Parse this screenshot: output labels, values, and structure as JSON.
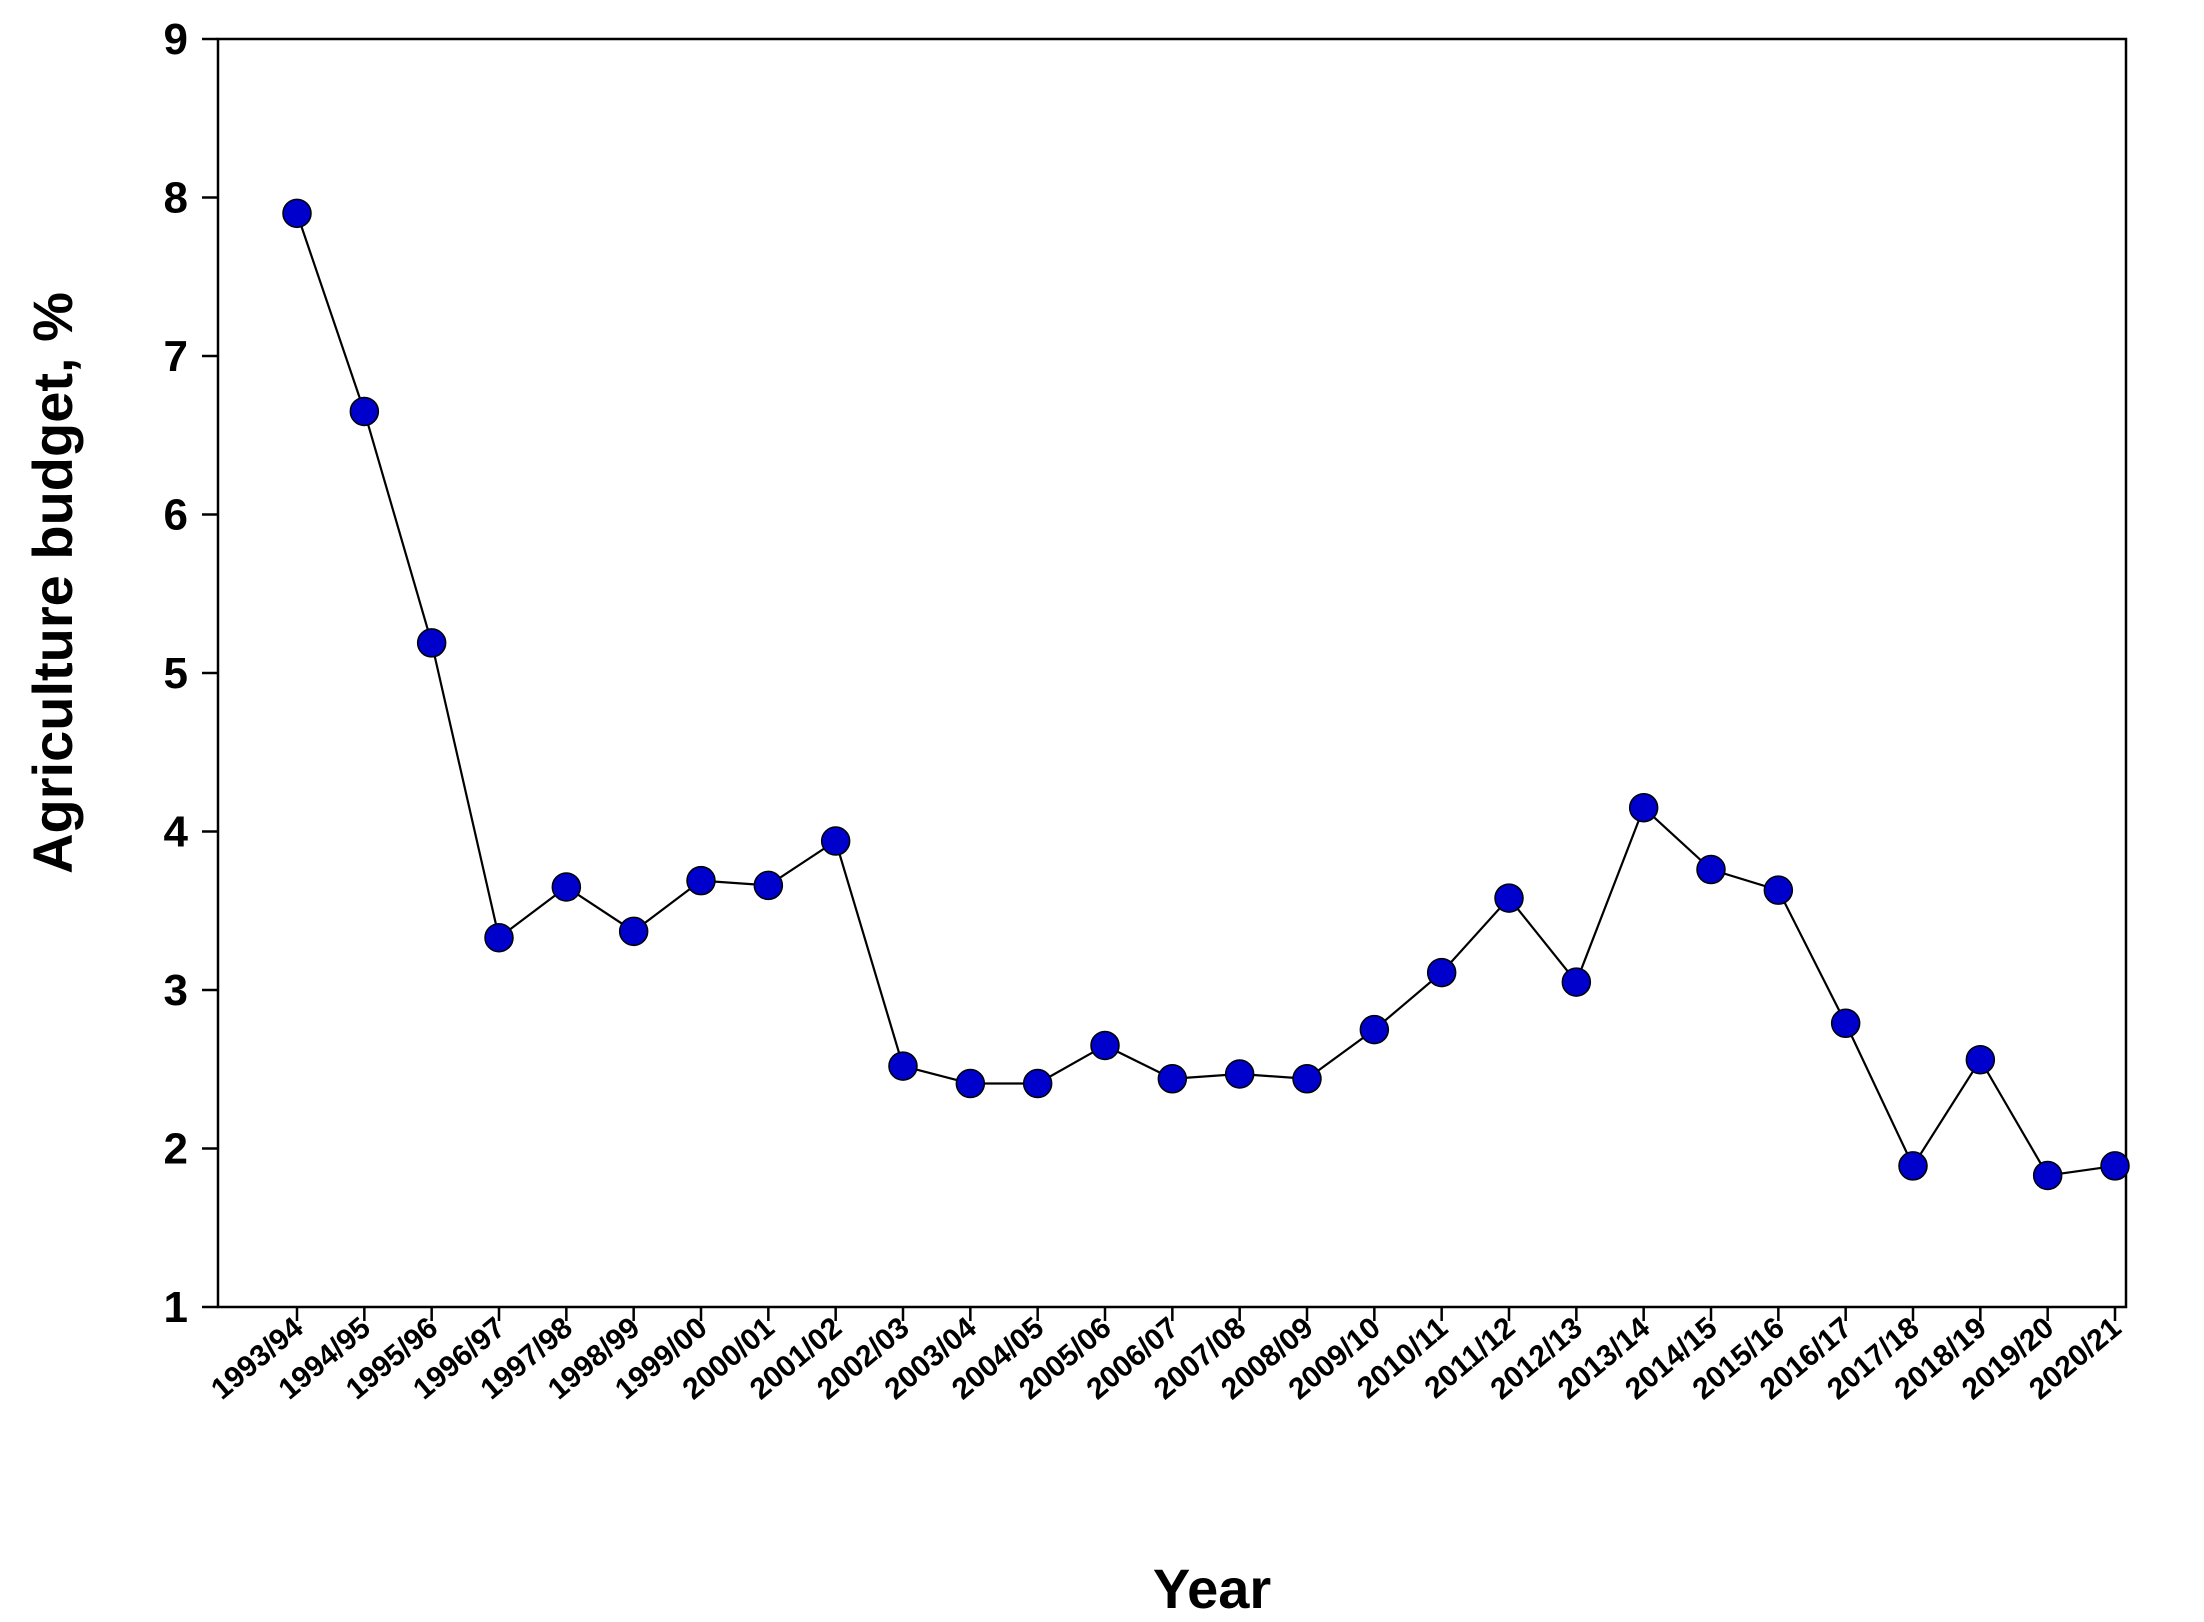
{
  "chart_data": {
    "type": "line",
    "xlabel": "Year",
    "ylabel": "Agriculture budget, %",
    "ylim": [
      1,
      9
    ],
    "yticks": [
      1,
      2,
      3,
      4,
      5,
      6,
      7,
      8,
      9
    ],
    "grid": false,
    "legend": "none",
    "categories": [
      "1993/94",
      "1994/95",
      "1995/96",
      "1996/97",
      "1997/98",
      "1998/99",
      "1999/00",
      "2000/01",
      "2001/02",
      "2002/03",
      "2003/04",
      "2004/05",
      "2005/06",
      "2006/07",
      "2007/08",
      "2008/09",
      "2009/10",
      "2010/11",
      "2011/12",
      "2012/13",
      "2013/14",
      "2014/15",
      "2015/16",
      "2016/17",
      "2017/18",
      "2018/19",
      "2019/20",
      "2020/21"
    ],
    "series": [
      {
        "values": [
          7.9,
          6.65,
          5.19,
          3.33,
          3.65,
          3.37,
          3.69,
          3.66,
          3.94,
          2.52,
          2.41,
          2.41,
          2.65,
          2.44,
          2.47,
          2.44,
          2.75,
          3.11,
          3.58,
          3.05,
          4.15,
          3.76,
          3.63,
          2.79,
          1.89,
          2.56,
          1.83,
          1.89
        ],
        "color": "#0000cc"
      }
    ]
  }
}
